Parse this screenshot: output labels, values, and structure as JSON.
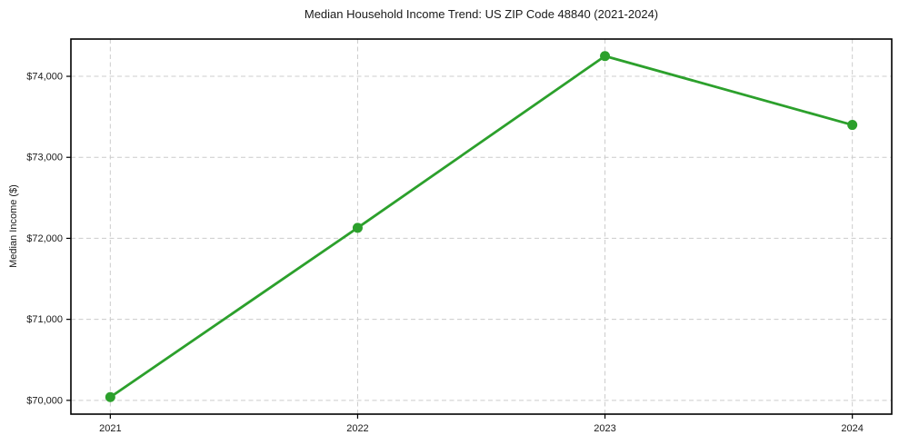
{
  "chart_data": {
    "type": "line",
    "title": "Median Household Income Trend: US ZIP Code 48840 (2021-2024)",
    "xlabel": "",
    "ylabel": "Median Income ($)",
    "x": [
      "2021",
      "2022",
      "2023",
      "2024"
    ],
    "values": [
      70040,
      72130,
      74250,
      73400
    ],
    "ylim": [
      69830,
      74460
    ],
    "yticks": [
      {
        "value": 70000,
        "label": "$70,000"
      },
      {
        "value": 71000,
        "label": "$71,000"
      },
      {
        "value": 72000,
        "label": "$72,000"
      },
      {
        "value": 73000,
        "label": "$73,000"
      },
      {
        "value": 74000,
        "label": "$74,000"
      }
    ],
    "grid": "dashed-both-axes",
    "legend": "none",
    "marker": "circle",
    "line_color": "#2ca02c",
    "grid_color": "#cccccc",
    "axis_color": "#000000",
    "text_color": "#1a1a1a",
    "background": "#ffffff"
  }
}
